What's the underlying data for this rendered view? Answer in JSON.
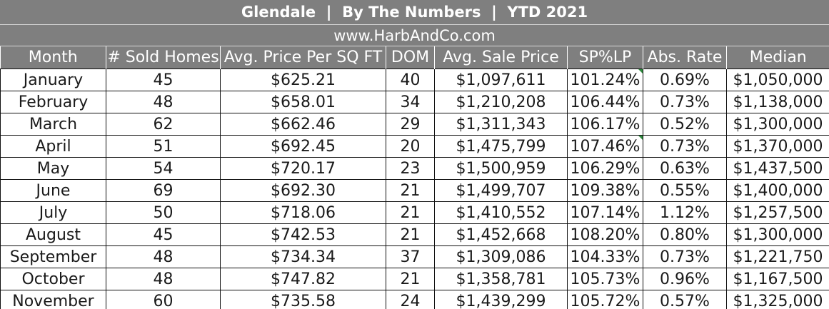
{
  "title": "Glendale  |  By The Numbers  |  YTD 2021",
  "website": "www.HarbAndCo.com",
  "columns": [
    "Month",
    "# Sold Homes",
    "Avg. Price Per SQ FT",
    "DOM",
    "Avg. Sale Price",
    "SP%LP",
    "Abs. Rate",
    "Median"
  ],
  "rows": [
    [
      "January",
      "45",
      "$625.21",
      "40",
      "$1,097,611",
      "101.24%",
      "0.69%",
      "$1,050,000"
    ],
    [
      "February",
      "48",
      "$658.01",
      "34",
      "$1,210,208",
      "106.44%",
      "0.73%",
      "$1,138,000"
    ],
    [
      "March",
      "62",
      "$662.46",
      "29",
      "$1,311,343",
      "106.17%",
      "0.52%",
      "$1,300,000"
    ],
    [
      "April",
      "51",
      "$692.45",
      "20",
      "$1,475,799",
      "107.46%",
      "0.73%",
      "$1,370,000"
    ],
    [
      "May",
      "54",
      "$720.17",
      "23",
      "$1,500,959",
      "106.29%",
      "0.63%",
      "$1,437,500"
    ],
    [
      "June",
      "69",
      "$692.30",
      "21",
      "$1,499,707",
      "109.38%",
      "0.55%",
      "$1,400,000"
    ],
    [
      "July",
      "50",
      "$718.06",
      "21",
      "$1,410,552",
      "107.14%",
      "1.12%",
      "$1,257,500"
    ],
    [
      "August",
      "45",
      "$742.53",
      "21",
      "$1,452,668",
      "108.20%",
      "0.80%",
      "$1,300,000"
    ],
    [
      "September",
      "48",
      "$734.34",
      "37",
      "$1,309,086",
      "104.33%",
      "0.73%",
      "$1,221,750"
    ],
    [
      "October",
      "48",
      "$747.82",
      "21",
      "$1,358,781",
      "105.73%",
      "0.96%",
      "$1,167,500"
    ],
    [
      "November",
      "60",
      "$735.58",
      "24",
      "$1,439,299",
      "105.72%",
      "0.57%",
      "$1,325,000"
    ]
  ],
  "colors": {
    "header_bg": "#7f7f7f",
    "header_text": "#ffffff",
    "grid_line": "#111111",
    "comment_marker": "#2e8b3e"
  }
}
